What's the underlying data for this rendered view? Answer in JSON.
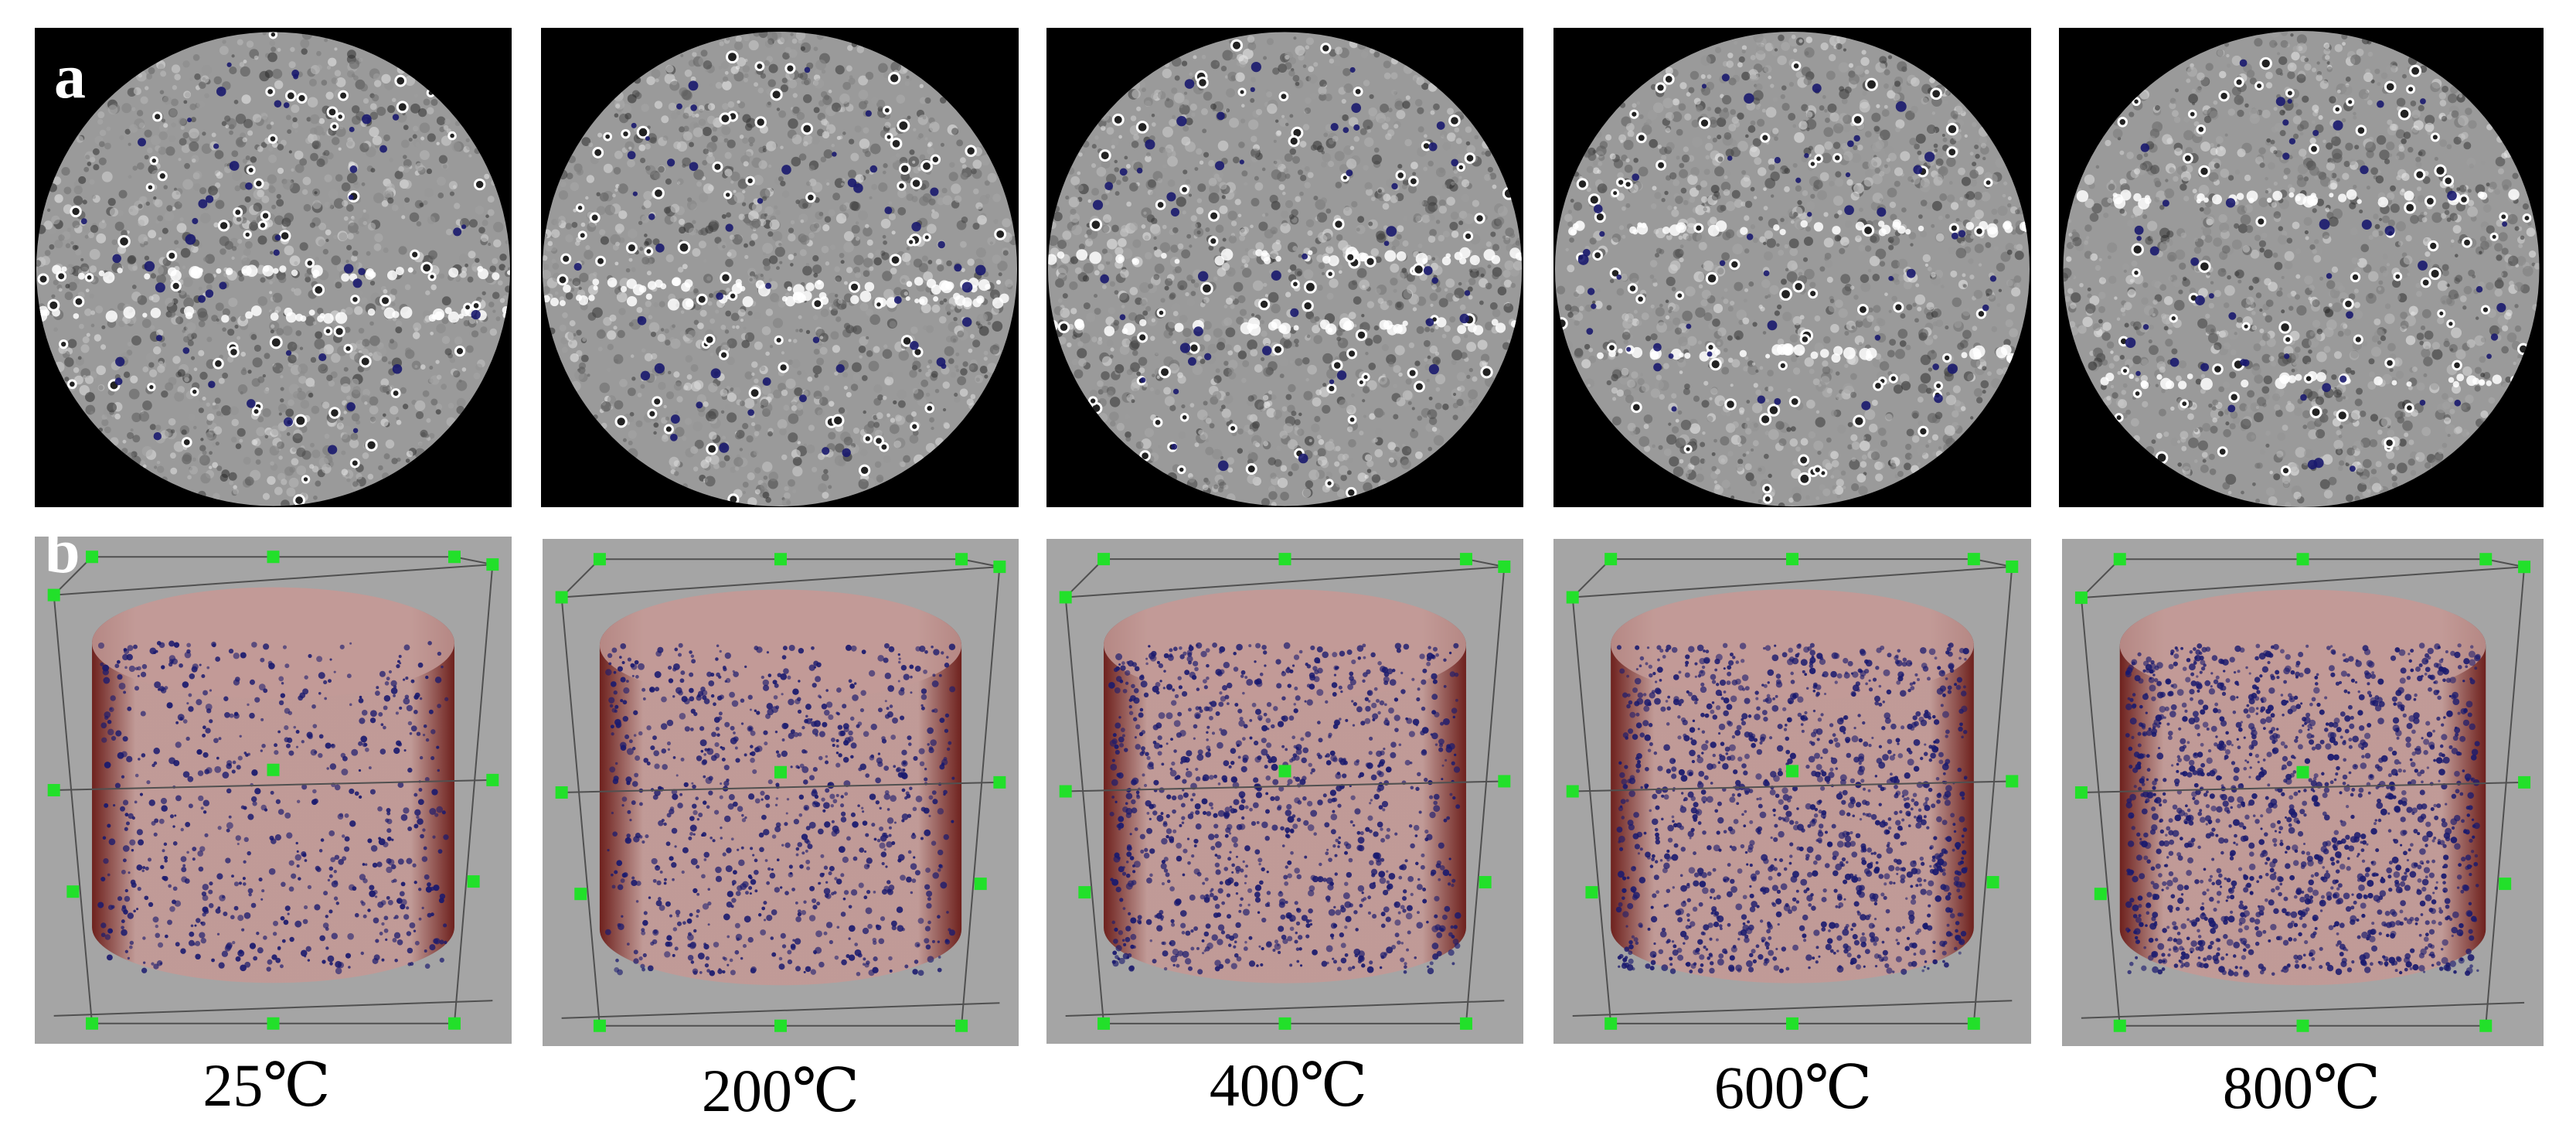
{
  "figure": {
    "row_labels": {
      "a": "a",
      "b": "b"
    },
    "panels": [
      {
        "temperature": "25℃"
      },
      {
        "temperature": "200℃"
      },
      {
        "temperature": "400℃"
      },
      {
        "temperature": "600℃"
      },
      {
        "temperature": "800℃"
      }
    ],
    "colors": {
      "ct_background": "#000000",
      "ct_disc": "#9a9a9a",
      "pore_marker": "#1a1a6e",
      "render_background": "#a5a5a5",
      "cylinder": "#c29a96",
      "cylinder_edge": "#6b1a16",
      "bbox_handle": "#22e02a"
    }
  }
}
